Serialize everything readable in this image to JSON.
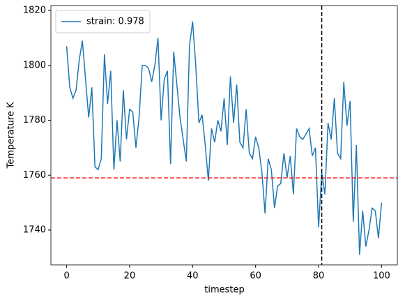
{
  "chart_data": {
    "type": "line",
    "xlabel": "timestep",
    "ylabel": "Temperature K",
    "x": [
      0,
      1,
      2,
      3,
      4,
      5,
      6,
      7,
      8,
      9,
      10,
      11,
      12,
      13,
      14,
      15,
      16,
      17,
      18,
      19,
      20,
      21,
      22,
      23,
      24,
      25,
      26,
      27,
      28,
      29,
      30,
      31,
      32,
      33,
      34,
      35,
      36,
      37,
      38,
      39,
      40,
      41,
      42,
      43,
      44,
      45,
      46,
      47,
      48,
      49,
      50,
      51,
      52,
      53,
      54,
      55,
      56,
      57,
      58,
      59,
      60,
      61,
      62,
      63,
      64,
      65,
      66,
      67,
      68,
      69,
      70,
      71,
      72,
      73,
      74,
      75,
      76,
      77,
      78,
      79,
      80,
      81,
      82,
      83,
      84,
      85,
      86,
      87,
      88,
      89,
      90,
      91,
      92,
      93,
      94,
      95,
      96,
      97,
      98,
      99,
      100
    ],
    "series": [
      {
        "name": "strain: 0.978",
        "color": "#1f77b4",
        "values": [
          1807,
          1792,
          1788,
          1791,
          1802,
          1809,
          1795,
          1781,
          1792,
          1763,
          1762,
          1766,
          1804,
          1786,
          1798,
          1762,
          1780,
          1765,
          1791,
          1773,
          1784,
          1783,
          1770,
          1781,
          1800,
          1800,
          1799,
          1794,
          1800,
          1810,
          1780,
          1795,
          1798,
          1764,
          1805,
          1793,
          1781,
          1773,
          1765,
          1807,
          1816,
          1800,
          1779,
          1782,
          1771,
          1758,
          1777,
          1772,
          1780,
          1776,
          1788,
          1771,
          1796,
          1779,
          1793,
          1772,
          1770,
          1784,
          1768,
          1766,
          1774,
          1770,
          1761,
          1746,
          1766,
          1762,
          1748,
          1756,
          1757,
          1768,
          1759,
          1767,
          1753,
          1777,
          1774,
          1773,
          1775,
          1777,
          1767,
          1770,
          1741,
          1761,
          1753,
          1779,
          1773,
          1788,
          1768,
          1766,
          1794,
          1778,
          1787,
          1743,
          1771,
          1731,
          1747,
          1734,
          1740,
          1748,
          1747,
          1737,
          1750
        ]
      }
    ],
    "hlines": [
      {
        "value": 1759,
        "color": "#ff0000"
      }
    ],
    "vlines": [
      {
        "value": 81,
        "color": "#000000"
      }
    ],
    "xlim": [
      -5,
      105
    ],
    "ylim": [
      1727.3,
      1821.8
    ],
    "xticks": [
      0,
      20,
      40,
      60,
      80,
      100
    ],
    "yticks": [
      1740,
      1760,
      1780,
      1800,
      1820
    ],
    "legend": "upper left"
  }
}
